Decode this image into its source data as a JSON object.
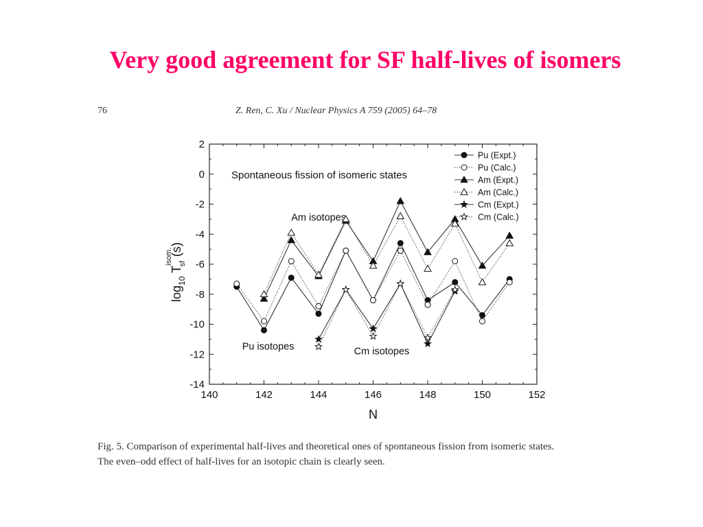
{
  "slide": {
    "title": "Very good agreement for SF half-lives of isomers"
  },
  "paper": {
    "page_number": "76",
    "citation": "Z. Ren, C. Xu / Nuclear Physics A 759 (2005) 64–78",
    "caption_line1": "Fig. 5. Comparison of experimental half-lives and theoretical ones of spontaneous fission from isomeric states.",
    "caption_line2": "The even–odd effect of half-lives for an isotopic chain is clearly seen."
  },
  "chart_data": {
    "type": "line",
    "title": "Spontaneous fission of isomeric states",
    "xlabel": "N",
    "ylabel": "log10 T sf isom (s)",
    "ylabel_parts": {
      "base": "log",
      "sub1": "10",
      "main": " T",
      "sup": "isom.",
      "sub2": "sf",
      "unit": "(s)"
    },
    "xlim": [
      140,
      152
    ],
    "ylim": [
      -14,
      2
    ],
    "x_ticks": [
      140,
      142,
      144,
      146,
      148,
      150,
      152
    ],
    "y_ticks": [
      2,
      0,
      -2,
      -4,
      -6,
      -8,
      -10,
      -12,
      -14
    ],
    "grid": false,
    "legend_position": "top-right",
    "annotations": [
      {
        "text": "Am isotopes",
        "x": 143.0,
        "y": -3.1
      },
      {
        "text": "Pu isotopes",
        "x": 141.2,
        "y": -11.7
      },
      {
        "text": "Cm isotopes",
        "x": 145.3,
        "y": -12.0
      }
    ],
    "series": [
      {
        "name": "Pu (Expt.)",
        "marker": "circle-filled",
        "line": "solid",
        "x": [
          141,
          142,
          143,
          144,
          145,
          146,
          147,
          148,
          149,
          150,
          151
        ],
        "y": [
          -7.5,
          -10.4,
          -6.9,
          -9.3,
          -5.1,
          -8.4,
          -4.6,
          -8.4,
          -7.2,
          -9.4,
          -7.0
        ]
      },
      {
        "name": "Pu (Calc.)",
        "marker": "circle-open",
        "line": "dotted",
        "x": [
          141,
          142,
          143,
          144,
          145,
          146,
          147,
          148,
          149,
          150,
          151
        ],
        "y": [
          -7.3,
          -9.8,
          -5.8,
          -8.8,
          -5.1,
          -8.4,
          -5.1,
          -8.7,
          -5.8,
          -9.8,
          -7.2
        ]
      },
      {
        "name": "Am (Expt.)",
        "marker": "triangle-filled",
        "line": "solid",
        "x": [
          142,
          143,
          144,
          145,
          146,
          147,
          148,
          149,
          150,
          151
        ],
        "y": [
          -8.3,
          -4.4,
          -6.8,
          -3.1,
          -5.8,
          -1.8,
          -5.2,
          -3.0,
          -6.1,
          -4.1
        ]
      },
      {
        "name": "Am (Calc.)",
        "marker": "triangle-open",
        "line": "dotted",
        "x": [
          142,
          143,
          144,
          145,
          146,
          147,
          148,
          149,
          150,
          151
        ],
        "y": [
          -8.0,
          -3.9,
          -6.7,
          -3.0,
          -6.1,
          -2.8,
          -6.3,
          -3.3,
          -7.2,
          -4.6
        ]
      },
      {
        "name": "Cm (Expt.)",
        "marker": "star-filled",
        "line": "solid",
        "x": [
          144,
          145,
          146,
          147,
          148,
          149
        ],
        "y": [
          -11.0,
          -7.7,
          -10.3,
          -7.3,
          -11.3,
          -7.8
        ]
      },
      {
        "name": "Cm (Calc.)",
        "marker": "star-open",
        "line": "dotted",
        "x": [
          144,
          145,
          146,
          147,
          148,
          149
        ],
        "y": [
          -11.5,
          -7.7,
          -10.8,
          -7.3,
          -10.9,
          -7.7
        ]
      }
    ]
  }
}
